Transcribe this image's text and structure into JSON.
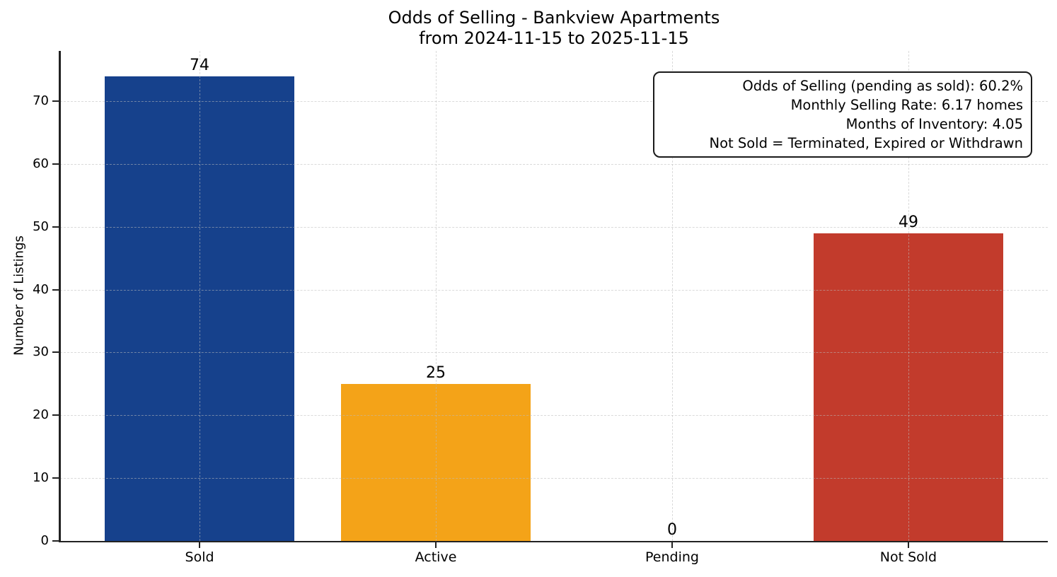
{
  "chart_data": {
    "type": "bar",
    "title": "Odds of Selling - Bankview Apartments",
    "subtitle": "from 2024-11-15 to 2025-11-15",
    "categories": [
      "Sold",
      "Active",
      "Pending",
      "Not Sold"
    ],
    "values": [
      74,
      25,
      0,
      49
    ],
    "bar_colors": [
      "#16418C",
      "#F4A318",
      null,
      "#C23B2C"
    ],
    "bar_width": 0.8,
    "xlabel": "",
    "ylabel": "Number of Listings",
    "yticks": [
      0,
      10,
      20,
      30,
      40,
      50,
      60,
      70
    ],
    "ylim": [
      0,
      78
    ],
    "xlim": [
      -0.59,
      3.59
    ],
    "grid": "dashed-both-axes-above-bars",
    "legend": "none",
    "background_color": "#ffffff",
    "annotation_box": {
      "position": "top-right",
      "lines": [
        "Odds of Selling (pending as sold): 60.2%",
        "Monthly Selling Rate: 6.17 homes",
        "Months of Inventory: 4.05",
        "Not Sold = Terminated, Expired or Withdrawn"
      ]
    }
  }
}
